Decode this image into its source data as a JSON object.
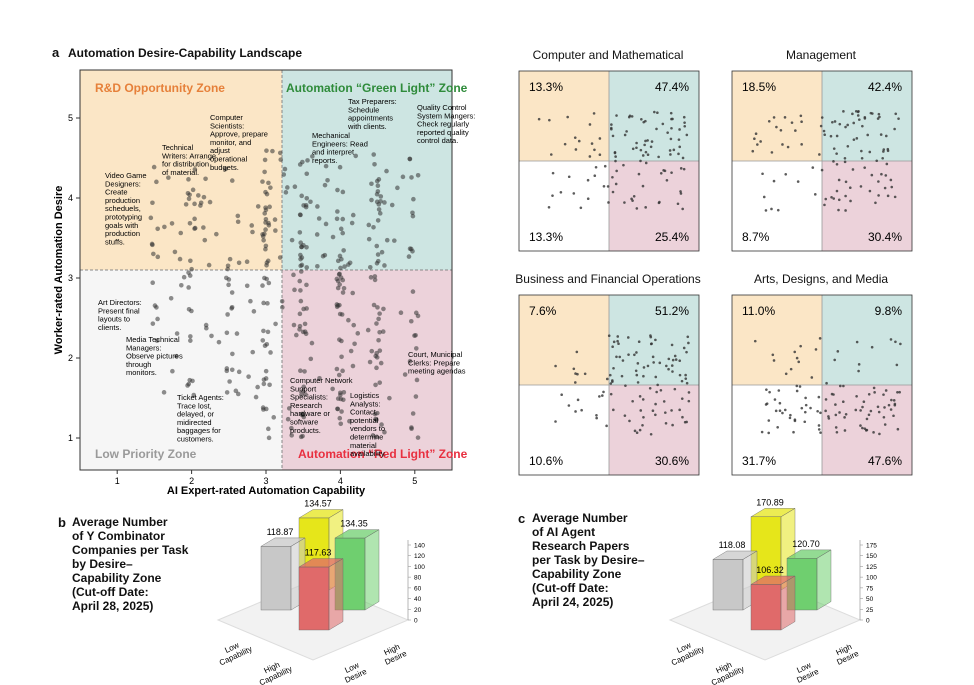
{
  "panel_a": {
    "letter": "a",
    "title": "Automation Desire-Capability Landscape",
    "colors": {
      "rd": "#fbe6c6",
      "green": "#cde5e2",
      "red": "#ecd2da",
      "low": "#f6f6f6",
      "rd_text": "#e6803a",
      "green_text": "#2e8b3a",
      "red_text": "#e83040",
      "low_text": "#9a9a9a"
    },
    "zones": {
      "rd": "R&D Opportunity Zone",
      "green": "Automation “Green Light” Zone",
      "red": "Automation “Red Light” Zone",
      "low": "Low Priority Zone"
    },
    "annotations": [
      "Video Game Designers: Create production scheduels, prototyping goals with production stuffs.",
      "Technical Writers: Arrange for distribution of material.",
      "Computer Scientists: Approve, prepare monitor, and adjust operational budgets.",
      "Mechanical Engineers: Read and interpret reports.",
      "Tax Preparers: Schedule appointments with clients.",
      "Quality Control System Mangers: Check regularly reported quality control data.",
      "Art Directors: Present final layouts to clients.",
      "Media Technical Managers: Observe pictures through monitors.",
      "Ticket Agents: Trace lost, delayed, or midirected baggages for customers.",
      "Computer Network Support Specialists: Research hardware or software products.",
      "Logistics Analysts: Contact potential vendors to determine material availability.",
      "Court, Municipal Clerks: Prepare meeting agendas"
    ]
  },
  "chart_data": [
    {
      "type": "scatter",
      "title": "Automation Desire-Capability Landscape",
      "xlabel": "AI Expert-rated Automation Capability",
      "ylabel": "Worker-rated Automation Desire",
      "xlim": [
        0.5,
        5.5
      ],
      "ylim": [
        0.6,
        5.6
      ],
      "xticks": [
        "1",
        "2",
        "3",
        "4",
        "5"
      ],
      "yticks": [
        "1",
        "2",
        "3",
        "4",
        "5"
      ],
      "thresholds": {
        "x": 3,
        "y": 3
      },
      "grid": false
    },
    {
      "type": "scatter",
      "title": "Computer and Mathematical",
      "quadrant_percentages": {
        "top_left": "13.3%",
        "top_right": "47.4%",
        "bottom_left": "13.3%",
        "bottom_right": "25.4%"
      }
    },
    {
      "type": "scatter",
      "title": "Management",
      "quadrant_percentages": {
        "top_left": "18.5%",
        "top_right": "42.4%",
        "bottom_left": "8.7%",
        "bottom_right": "30.4%"
      }
    },
    {
      "type": "scatter",
      "title": "Business and Financial Operations",
      "quadrant_percentages": {
        "top_left": "7.6%",
        "top_right": "51.2%",
        "bottom_left": "10.6%",
        "bottom_right": "30.6%"
      }
    },
    {
      "type": "scatter",
      "title": "Arts, Designs, and Media",
      "quadrant_percentages": {
        "top_left": "11.0%",
        "top_right": "9.8%",
        "bottom_left": "31.7%",
        "bottom_right": "47.6%"
      }
    },
    {
      "type": "bar",
      "title": "Average Number of Y Combinator Companies per Task by Desire–Capability Zone (Cut-off Date: April 28, 2025)",
      "categories": [
        "Low Desire, Low Capability",
        "High Desire, Low Capability",
        "High Desire, High Capability",
        "Low Desire, High Capability"
      ],
      "values": [
        118.87,
        134.57,
        134.35,
        117.63
      ],
      "axis_labels": [
        "Low Capability",
        "High Capability",
        "Low Desire",
        "High Desire"
      ],
      "zticks": [
        "0",
        "20",
        "40",
        "60",
        "80",
        "100",
        "120",
        "140"
      ]
    },
    {
      "type": "bar",
      "title": "Average Number of AI Agent Research Papers per Task by Desire–Capability Zone (Cut-off Date: April 24, 2025)",
      "categories": [
        "Low Desire, Low Capability",
        "High Desire, Low Capability",
        "High Desire, High Capability",
        "Low Desire, High Capability"
      ],
      "values": [
        118.08,
        170.89,
        120.7,
        106.32
      ],
      "axis_labels": [
        "Low Capability",
        "High Capability",
        "Low Desire",
        "High Desire"
      ],
      "zticks": [
        "0",
        "25",
        "50",
        "75",
        "100",
        "125",
        "150",
        "175"
      ]
    }
  ],
  "panel_b": {
    "letter": "b",
    "title": "Average Number\nof Y Combinator\nCompanies per Task\nby Desire–\nCapability Zone\n(Cut-off Date:\nApril 28, 2025)"
  },
  "panel_c": {
    "letter": "c",
    "title": "Average Number\nof AI Agent\nResearch Papers\nper Task by Desire–\nCapability Zone\n(Cut-off Date:\nApril 24, 2025)"
  },
  "bar_colors": {
    "gray": "#c8c8c8",
    "yellow": "#e6e61a",
    "green": "#6fcf6f",
    "red": "#e06a6a"
  }
}
